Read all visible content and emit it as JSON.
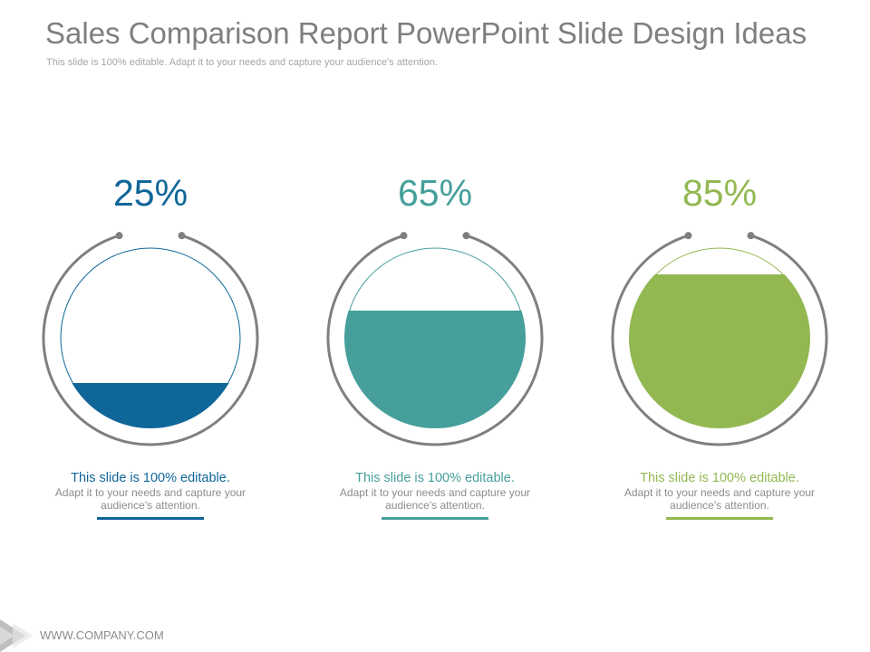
{
  "slide": {
    "title": "Sales Comparison Report PowerPoint Slide Design Ideas",
    "subtitle": "This slide is 100% editable. Adapt it to your needs and capture your audience's attention.",
    "footer_url": "WWW.COMPANY.COM"
  },
  "chart_data": {
    "type": "gauge",
    "series": [
      {
        "value": 25,
        "label": "25%",
        "color": "#0f6698",
        "caption_head": "This slide is 100% editable.",
        "caption_body": "Adapt it to your needs and capture your audience's attention."
      },
      {
        "value": 65,
        "label": "65%",
        "color": "#469f9b",
        "caption_head": "This slide is 100% editable.",
        "caption_body": "Adapt it to your needs and capture your audience's attention."
      },
      {
        "value": 85,
        "label": "85%",
        "color": "#93b852",
        "caption_head": "This slide is 100% editable.",
        "caption_body": "Adapt it to your needs and capture your audience's attention."
      }
    ]
  },
  "colors": {
    "ring": "#7f7f7f",
    "title": "#7f7f7f",
    "muted": "#8c8c8c"
  }
}
